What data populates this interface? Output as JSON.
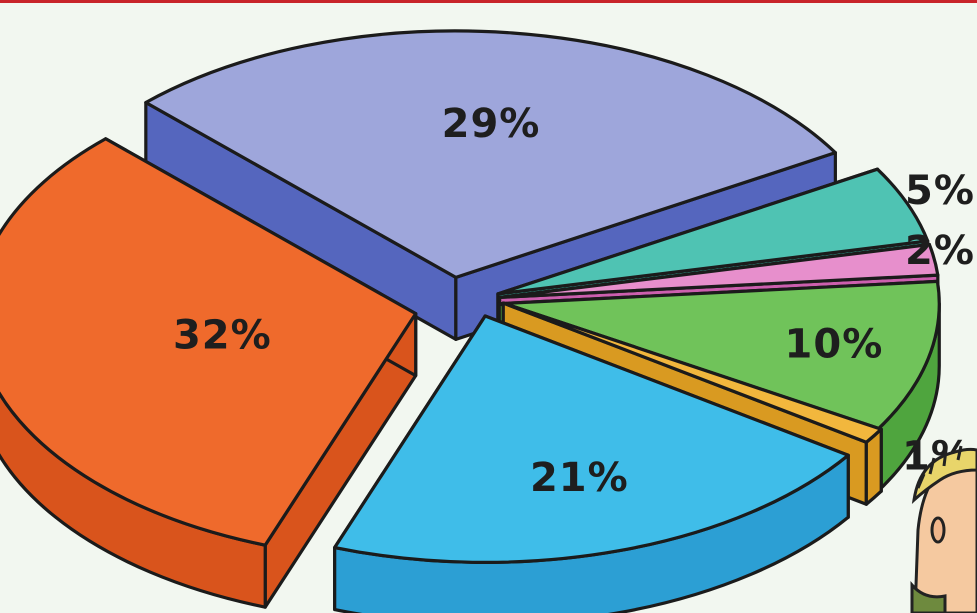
{
  "chart_data": {
    "type": "pie",
    "style": "exploded 3D pie",
    "slices": [
      {
        "label": "32%",
        "value": 32,
        "top_color": "#ef6a2c",
        "side_color": "#d9541c"
      },
      {
        "label": "29%",
        "value": 29,
        "top_color": "#9ea6db",
        "side_color": "#5566be"
      },
      {
        "label": "5%",
        "value": 5,
        "top_color": "#4fc3b3",
        "side_color": "#30a696"
      },
      {
        "label": "2%",
        "value": 2,
        "top_color": "#e78fcc",
        "side_color": "#cc5fae"
      },
      {
        "label": "10%",
        "value": 10,
        "top_color": "#70c35a",
        "side_color": "#4fa53e"
      },
      {
        "label": "1%",
        "value": 1,
        "top_color": "#f2b73d",
        "side_color": "#d99a21"
      },
      {
        "label": "21%",
        "value": 21,
        "top_color": "#3fbde9",
        "side_color": "#2c9fd4"
      }
    ]
  },
  "decoration": {
    "character": "cartoon-child-peeking"
  }
}
